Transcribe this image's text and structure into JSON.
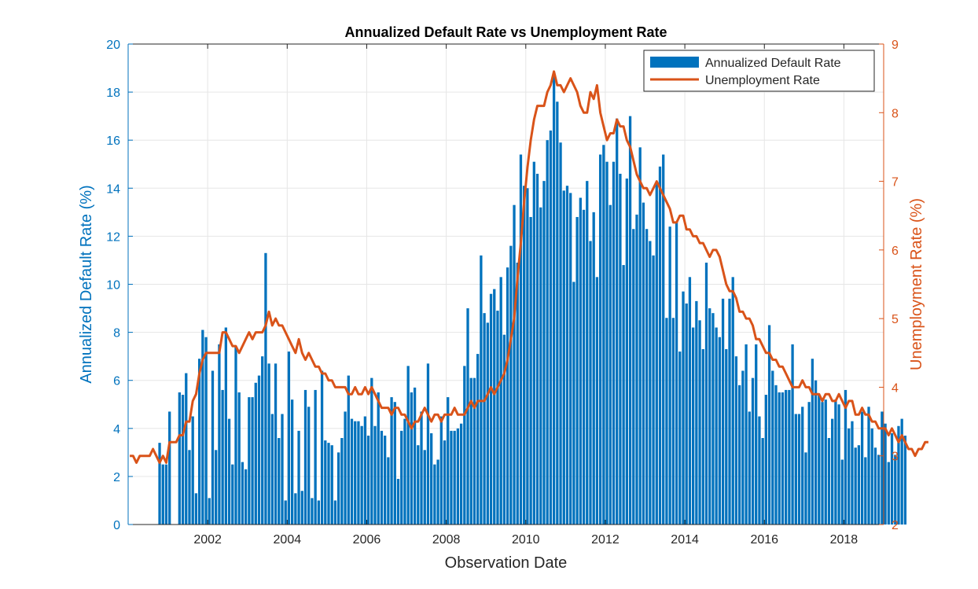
{
  "chart_data": {
    "type": "bar+line",
    "title": "Annualized Default Rate vs Unemployment Rate",
    "xlabel": "Observation Date",
    "ylabel_left": "Annualized Default Rate (%)",
    "ylabel_right": "Unemployment Rate (%)",
    "x_ticks": [
      "2002",
      "2004",
      "2006",
      "2008",
      "2010",
      "2012",
      "2014",
      "2016",
      "2018"
    ],
    "x_range": [
      "2000-01",
      "2019-01"
    ],
    "ylim_left": [
      0,
      20
    ],
    "ylim_right": [
      2,
      9
    ],
    "y_ticks_left": [
      "0",
      "2",
      "4",
      "6",
      "8",
      "10",
      "12",
      "14",
      "16",
      "18",
      "20"
    ],
    "y_ticks_right": [
      "2",
      "3",
      "4",
      "5",
      "6",
      "7",
      "8",
      "9"
    ],
    "grid": true,
    "legend_position": "top-right",
    "colors": {
      "bar": "#0072BD",
      "line": "#D95319",
      "left_axis": "#0072BD",
      "right_axis": "#D95319"
    },
    "bar_series": {
      "name": "Annualized Default Rate",
      "start": "2000-01",
      "frequency": "monthly",
      "values": [
        0,
        0,
        0,
        0,
        0,
        0,
        0,
        0,
        0,
        3.4,
        2.5,
        2.5,
        4.7,
        0,
        0,
        5.5,
        5.4,
        6.3,
        3.1,
        4.5,
        1.3,
        6.9,
        8.1,
        7.8,
        1.1,
        6.4,
        3.1,
        7.5,
        5.6,
        8.2,
        4.4,
        2.5,
        7.4,
        5.5,
        2.6,
        2.3,
        5.3,
        5.3,
        5.9,
        6.2,
        7.0,
        11.3,
        6.7,
        4.6,
        6.7,
        3.6,
        4.6,
        1.0,
        7.2,
        5.2,
        1.3,
        3.9,
        1.4,
        5.6,
        4.9,
        1.1,
        5.6,
        1.0,
        6.4,
        3.5,
        3.4,
        3.3,
        1.0,
        3.0,
        3.6,
        4.7,
        6.2,
        4.4,
        4.3,
        4.3,
        4.1,
        4.5,
        3.7,
        6.1,
        4.1,
        5.5,
        3.9,
        3.7,
        2.8,
        5.3,
        5.1,
        1.9,
        3.9,
        4.4,
        6.6,
        5.5,
        5.7,
        3.3,
        4.7,
        3.1,
        6.7,
        3.8,
        2.5,
        2.7,
        4.5,
        3.5,
        5.3,
        3.9,
        3.9,
        4.0,
        4.2,
        6.6,
        9.0,
        6.1,
        6.1,
        7.1,
        11.2,
        8.8,
        8.4,
        9.6,
        9.8,
        8.9,
        10.3,
        7.9,
        10.7,
        11.6,
        13.3,
        10.9,
        15.4,
        14.1,
        14.0,
        12.8,
        15.1,
        14.6,
        13.2,
        14.3,
        16.0,
        16.4,
        18.8,
        17.6,
        15.9,
        13.9,
        14.1,
        13.8,
        10.1,
        12.8,
        13.6,
        13.1,
        14.3,
        11.8,
        13.0,
        10.3,
        15.4,
        15.8,
        15.1,
        13.3,
        15.1,
        16.9,
        14.6,
        10.8,
        14.4,
        17.0,
        12.3,
        12.9,
        15.7,
        13.4,
        12.3,
        11.8,
        11.2,
        14.2,
        14.9,
        15.4,
        8.6,
        12.4,
        8.6,
        12.6,
        7.2,
        9.7,
        9.2,
        10.3,
        8.2,
        9.3,
        8.5,
        7.3,
        10.9,
        9.0,
        8.8,
        8.2,
        7.8,
        9.4,
        7.3,
        9.4,
        10.3,
        7.0,
        5.8,
        6.4,
        7.5,
        4.7,
        6.1,
        7.5,
        4.5,
        3.6,
        5.4,
        8.3,
        6.4,
        5.8,
        5.5,
        5.5,
        5.6,
        5.6,
        7.5,
        4.6,
        4.6,
        4.9,
        3.0,
        5.1,
        6.9,
        6.0,
        5.4,
        5.1,
        5.2,
        3.6,
        4.4,
        5.2,
        5.0,
        2.7,
        5.6,
        4.0,
        4.3,
        3.2,
        3.3,
        4.7,
        2.8,
        4.9,
        4.0,
        3.2,
        2.9,
        4.7,
        4.2,
        2.6,
        3.8,
        2.9,
        4.1,
        4.4,
        3.7
      ]
    },
    "line_series": {
      "name": "Unemployment Rate",
      "start": "2000-01",
      "frequency": "monthly",
      "values": [
        3.0,
        3.0,
        2.9,
        3.0,
        3.0,
        3.0,
        3.0,
        3.1,
        3.0,
        2.9,
        3.0,
        2.9,
        3.2,
        3.2,
        3.2,
        3.3,
        3.3,
        3.5,
        3.5,
        3.8,
        3.9,
        4.2,
        4.4,
        4.5,
        4.5,
        4.5,
        4.5,
        4.5,
        4.8,
        4.8,
        4.7,
        4.6,
        4.6,
        4.5,
        4.6,
        4.7,
        4.8,
        4.7,
        4.8,
        4.8,
        4.8,
        4.9,
        5.1,
        4.9,
        5.0,
        4.9,
        4.9,
        4.8,
        4.7,
        4.6,
        4.5,
        4.7,
        4.5,
        4.4,
        4.5,
        4.4,
        4.3,
        4.3,
        4.2,
        4.2,
        4.1,
        4.1,
        4.0,
        4.0,
        4.0,
        4.0,
        3.9,
        3.9,
        4.0,
        3.9,
        3.9,
        4.0,
        3.9,
        4.0,
        3.9,
        3.8,
        3.7,
        3.7,
        3.7,
        3.6,
        3.7,
        3.7,
        3.6,
        3.6,
        3.5,
        3.4,
        3.5,
        3.5,
        3.6,
        3.7,
        3.6,
        3.5,
        3.6,
        3.6,
        3.5,
        3.6,
        3.6,
        3.6,
        3.7,
        3.6,
        3.6,
        3.6,
        3.7,
        3.8,
        3.7,
        3.8,
        3.8,
        3.8,
        3.9,
        4.0,
        3.9,
        4.0,
        4.1,
        4.2,
        4.4,
        4.7,
        5.0,
        5.6,
        6.1,
        6.7,
        7.2,
        7.6,
        7.9,
        8.1,
        8.1,
        8.1,
        8.3,
        8.4,
        8.6,
        8.4,
        8.4,
        8.3,
        8.4,
        8.5,
        8.4,
        8.3,
        8.1,
        8.0,
        8.0,
        8.3,
        8.2,
        8.4,
        8.0,
        7.8,
        7.6,
        7.7,
        7.7,
        7.9,
        7.8,
        7.8,
        7.6,
        7.5,
        7.3,
        7.1,
        7.0,
        6.9,
        6.9,
        6.8,
        6.9,
        7.0,
        6.9,
        6.8,
        6.7,
        6.6,
        6.4,
        6.4,
        6.5,
        6.5,
        6.3,
        6.3,
        6.2,
        6.2,
        6.1,
        6.1,
        6.0,
        5.9,
        6.0,
        6.0,
        5.9,
        5.7,
        5.5,
        5.4,
        5.4,
        5.3,
        5.1,
        5.1,
        5.0,
        5.0,
        4.9,
        4.7,
        4.7,
        4.6,
        4.5,
        4.5,
        4.4,
        4.4,
        4.3,
        4.3,
        4.2,
        4.1,
        4.0,
        4.0,
        4.0,
        4.1,
        4.0,
        4.0,
        3.9,
        3.9,
        3.9,
        3.8,
        3.9,
        3.9,
        3.8,
        3.8,
        3.9,
        3.8,
        3.7,
        3.8,
        3.8,
        3.6,
        3.6,
        3.7,
        3.6,
        3.6,
        3.5,
        3.5,
        3.4,
        3.4,
        3.4,
        3.3,
        3.4,
        3.3,
        3.2,
        3.3,
        3.2,
        3.1,
        3.1,
        3.0,
        3.1,
        3.1,
        3.2,
        3.2
      ]
    }
  }
}
